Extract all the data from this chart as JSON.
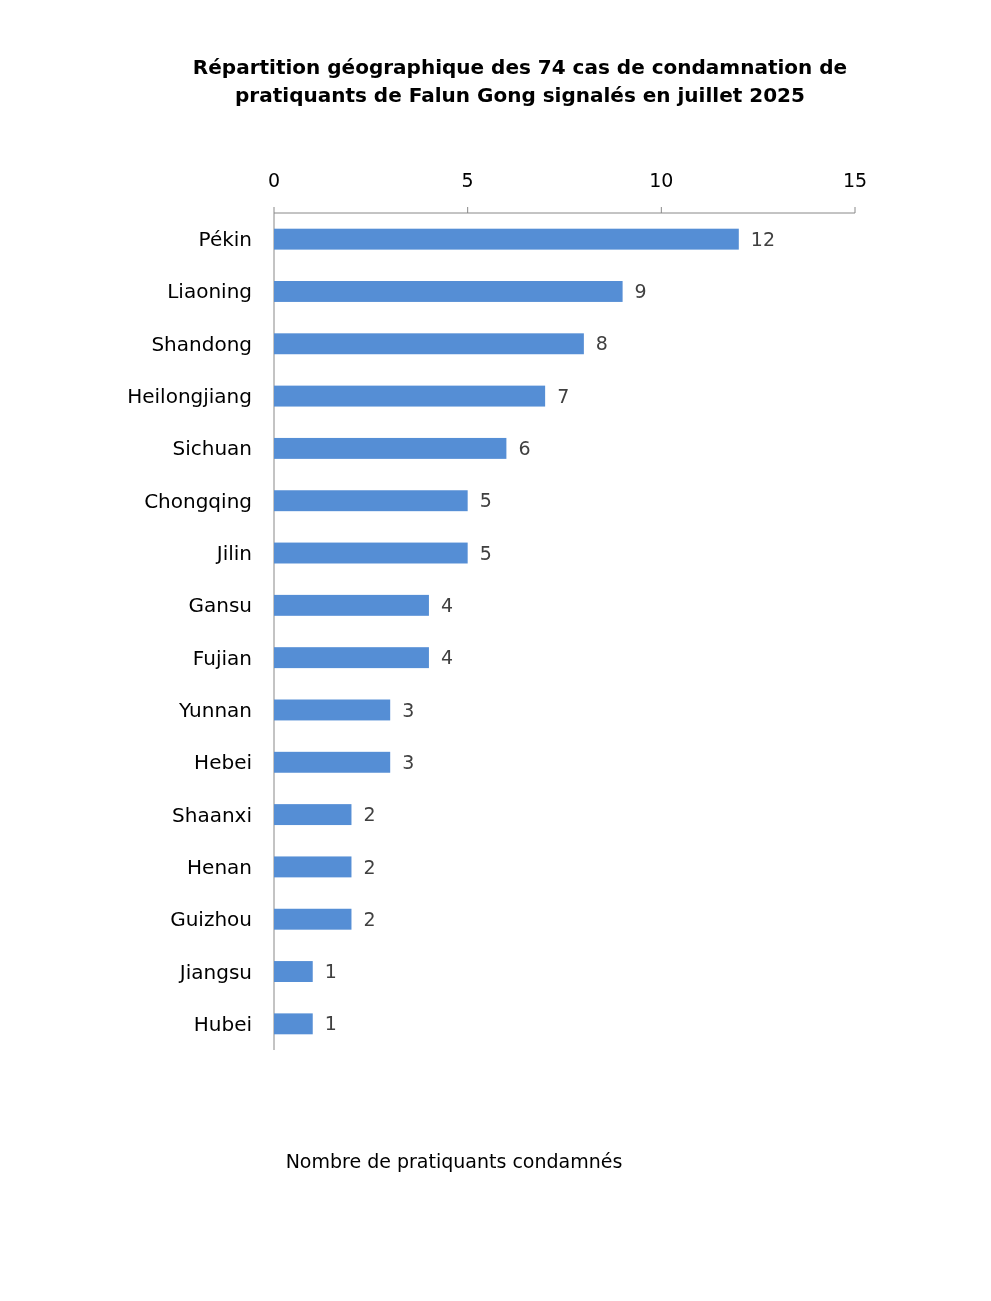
{
  "chart_data": {
    "type": "bar",
    "orientation": "horizontal",
    "title": "Répartition géographique des 74 cas de condamnation de pratiquants de Falun Gong signalés en juillet 2025",
    "annotations": [
      "Nombre de pratiquants condamnés"
    ],
    "categories": [
      "Pékin",
      "Liaoning",
      "Shandong",
      "Heilongjiang",
      "Sichuan",
      "Chongqing",
      "Jilin",
      "Gansu",
      "Fujian",
      "Yunnan",
      "Hebei",
      "Shaanxi",
      "Henan",
      "Guizhou",
      "Jiangsu",
      "Hubei"
    ],
    "values": [
      12,
      9,
      8,
      7,
      6,
      5,
      5,
      4,
      4,
      3,
      3,
      2,
      2,
      2,
      1,
      1
    ],
    "color": "#558ed5",
    "xlim": [
      0,
      15
    ],
    "xticks": [
      0,
      5,
      10,
      15
    ],
    "data_labels": true,
    "grid": false
  }
}
